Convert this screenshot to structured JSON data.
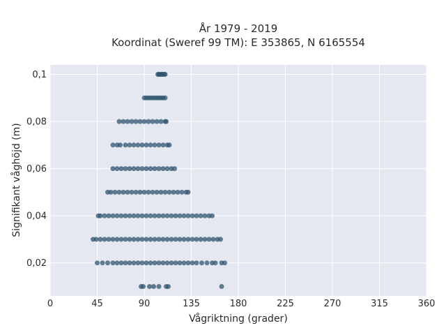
{
  "chart_data": {
    "type": "scatter",
    "title": "År 1979 - 2019",
    "subtitle": "Koordinat (Sweref 99 TM): E 353865, N 6165554",
    "xlabel": "Vågriktning (grader)",
    "ylabel": "Signifikant våghöjd (m)",
    "xlim": [
      0,
      360
    ],
    "ylim": [
      0.006,
      0.104
    ],
    "x_ticks": [
      0,
      45,
      90,
      135,
      180,
      225,
      270,
      315,
      360
    ],
    "x_tick_labels": [
      "0",
      "45",
      "90",
      "135",
      "180",
      "225",
      "270",
      "315",
      "360"
    ],
    "y_ticks": [
      0.02,
      0.04,
      0.06,
      0.08,
      0.1
    ],
    "y_tick_labels": [
      "0,02",
      "0,04",
      "0,06",
      "0,08",
      "0,1"
    ],
    "grid": true,
    "marker_color": "#2f5570",
    "plot_background": "#e5e8f0",
    "series": [
      {
        "points": [
          [
            103,
            0.1
          ],
          [
            104,
            0.1
          ],
          [
            105,
            0.1
          ],
          [
            106,
            0.1
          ],
          [
            107,
            0.1
          ],
          [
            108,
            0.1
          ],
          [
            109,
            0.1
          ],
          [
            110,
            0.1
          ],
          [
            90,
            0.09
          ],
          [
            92,
            0.09
          ],
          [
            94,
            0.09
          ],
          [
            96,
            0.09
          ],
          [
            98,
            0.09
          ],
          [
            100,
            0.09
          ],
          [
            102,
            0.09
          ],
          [
            104,
            0.09
          ],
          [
            106,
            0.09
          ],
          [
            108,
            0.09
          ],
          [
            110,
            0.09
          ],
          [
            66,
            0.08
          ],
          [
            70,
            0.08
          ],
          [
            74,
            0.08
          ],
          [
            78,
            0.08
          ],
          [
            82,
            0.08
          ],
          [
            86,
            0.08
          ],
          [
            90,
            0.08
          ],
          [
            94,
            0.08
          ],
          [
            98,
            0.08
          ],
          [
            102,
            0.08
          ],
          [
            106,
            0.08
          ],
          [
            110,
            0.08
          ],
          [
            111,
            0.08
          ],
          [
            60,
            0.07
          ],
          [
            64,
            0.07
          ],
          [
            67,
            0.07
          ],
          [
            72,
            0.07
          ],
          [
            76,
            0.07
          ],
          [
            80,
            0.07
          ],
          [
            84,
            0.07
          ],
          [
            88,
            0.07
          ],
          [
            92,
            0.07
          ],
          [
            96,
            0.07
          ],
          [
            100,
            0.07
          ],
          [
            104,
            0.07
          ],
          [
            108,
            0.07
          ],
          [
            112,
            0.07
          ],
          [
            114,
            0.07
          ],
          [
            60,
            0.06
          ],
          [
            64,
            0.06
          ],
          [
            68,
            0.06
          ],
          [
            72,
            0.06
          ],
          [
            76,
            0.06
          ],
          [
            80,
            0.06
          ],
          [
            84,
            0.06
          ],
          [
            88,
            0.06
          ],
          [
            92,
            0.06
          ],
          [
            96,
            0.06
          ],
          [
            100,
            0.06
          ],
          [
            104,
            0.06
          ],
          [
            108,
            0.06
          ],
          [
            112,
            0.06
          ],
          [
            116,
            0.06
          ],
          [
            119,
            0.06
          ],
          [
            55,
            0.05
          ],
          [
            58,
            0.05
          ],
          [
            62,
            0.05
          ],
          [
            66,
            0.05
          ],
          [
            70,
            0.05
          ],
          [
            74,
            0.05
          ],
          [
            78,
            0.05
          ],
          [
            82,
            0.05
          ],
          [
            86,
            0.05
          ],
          [
            90,
            0.05
          ],
          [
            94,
            0.05
          ],
          [
            98,
            0.05
          ],
          [
            102,
            0.05
          ],
          [
            106,
            0.05
          ],
          [
            110,
            0.05
          ],
          [
            114,
            0.05
          ],
          [
            118,
            0.05
          ],
          [
            122,
            0.05
          ],
          [
            126,
            0.05
          ],
          [
            130,
            0.05
          ],
          [
            132,
            0.05
          ],
          [
            46,
            0.04
          ],
          [
            48,
            0.04
          ],
          [
            52,
            0.04
          ],
          [
            56,
            0.04
          ],
          [
            60,
            0.04
          ],
          [
            64,
            0.04
          ],
          [
            68,
            0.04
          ],
          [
            72,
            0.04
          ],
          [
            76,
            0.04
          ],
          [
            80,
            0.04
          ],
          [
            84,
            0.04
          ],
          [
            88,
            0.04
          ],
          [
            92,
            0.04
          ],
          [
            96,
            0.04
          ],
          [
            100,
            0.04
          ],
          [
            104,
            0.04
          ],
          [
            108,
            0.04
          ],
          [
            112,
            0.04
          ],
          [
            116,
            0.04
          ],
          [
            120,
            0.04
          ],
          [
            124,
            0.04
          ],
          [
            128,
            0.04
          ],
          [
            132,
            0.04
          ],
          [
            136,
            0.04
          ],
          [
            140,
            0.04
          ],
          [
            144,
            0.04
          ],
          [
            148,
            0.04
          ],
          [
            152,
            0.04
          ],
          [
            155,
            0.04
          ],
          [
            41,
            0.03
          ],
          [
            44,
            0.03
          ],
          [
            48,
            0.03
          ],
          [
            52,
            0.03
          ],
          [
            56,
            0.03
          ],
          [
            60,
            0.03
          ],
          [
            64,
            0.03
          ],
          [
            68,
            0.03
          ],
          [
            72,
            0.03
          ],
          [
            76,
            0.03
          ],
          [
            80,
            0.03
          ],
          [
            84,
            0.03
          ],
          [
            88,
            0.03
          ],
          [
            92,
            0.03
          ],
          [
            96,
            0.03
          ],
          [
            100,
            0.03
          ],
          [
            104,
            0.03
          ],
          [
            108,
            0.03
          ],
          [
            112,
            0.03
          ],
          [
            116,
            0.03
          ],
          [
            120,
            0.03
          ],
          [
            124,
            0.03
          ],
          [
            128,
            0.03
          ],
          [
            132,
            0.03
          ],
          [
            136,
            0.03
          ],
          [
            140,
            0.03
          ],
          [
            144,
            0.03
          ],
          [
            148,
            0.03
          ],
          [
            152,
            0.03
          ],
          [
            156,
            0.03
          ],
          [
            160,
            0.03
          ],
          [
            163,
            0.03
          ],
          [
            45,
            0.02
          ],
          [
            50,
            0.02
          ],
          [
            55,
            0.02
          ],
          [
            60,
            0.02
          ],
          [
            64,
            0.02
          ],
          [
            68,
            0.02
          ],
          [
            72,
            0.02
          ],
          [
            76,
            0.02
          ],
          [
            80,
            0.02
          ],
          [
            84,
            0.02
          ],
          [
            88,
            0.02
          ],
          [
            92,
            0.02
          ],
          [
            96,
            0.02
          ],
          [
            100,
            0.02
          ],
          [
            104,
            0.02
          ],
          [
            108,
            0.02
          ],
          [
            112,
            0.02
          ],
          [
            116,
            0.02
          ],
          [
            120,
            0.02
          ],
          [
            124,
            0.02
          ],
          [
            128,
            0.02
          ],
          [
            132,
            0.02
          ],
          [
            136,
            0.02
          ],
          [
            140,
            0.02
          ],
          [
            145,
            0.02
          ],
          [
            150,
            0.02
          ],
          [
            155,
            0.02
          ],
          [
            158,
            0.02
          ],
          [
            164,
            0.02
          ],
          [
            167,
            0.02
          ],
          [
            87,
            0.01
          ],
          [
            89,
            0.01
          ],
          [
            95,
            0.01
          ],
          [
            99,
            0.01
          ],
          [
            104,
            0.01
          ],
          [
            111,
            0.01
          ],
          [
            113,
            0.01
          ],
          [
            164,
            0.01
          ]
        ]
      }
    ]
  }
}
